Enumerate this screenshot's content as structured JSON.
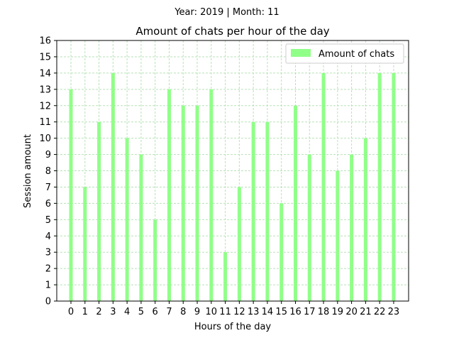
{
  "chart_data": {
    "type": "bar",
    "suptitle": "Year: 2019 | Month: 11",
    "title": "Amount of chats per hour of the day",
    "xlabel": "Hours of the day",
    "ylabel": "Session amount",
    "categories": [
      "0",
      "1",
      "2",
      "3",
      "4",
      "5",
      "6",
      "7",
      "8",
      "9",
      "10",
      "11",
      "12",
      "13",
      "14",
      "15",
      "16",
      "17",
      "18",
      "19",
      "20",
      "21",
      "22",
      "23"
    ],
    "series": [
      {
        "name": "Amount of chats",
        "values": [
          13,
          7,
          11,
          14,
          10,
          9,
          5,
          13,
          12,
          12,
          13,
          3,
          7,
          11,
          11,
          6,
          12,
          9,
          14,
          8,
          9,
          10,
          14,
          14
        ]
      }
    ],
    "ylim": [
      0,
      16
    ],
    "yticks": [
      "0",
      "1",
      "2",
      "3",
      "4",
      "5",
      "6",
      "7",
      "8",
      "9",
      "10",
      "11",
      "12",
      "13",
      "14",
      "15",
      "16"
    ],
    "grid": true,
    "legend_position": "upper right",
    "colors": {
      "bar": "#90ff88",
      "grid": "#b7e2b7",
      "axis": "#000000"
    }
  }
}
